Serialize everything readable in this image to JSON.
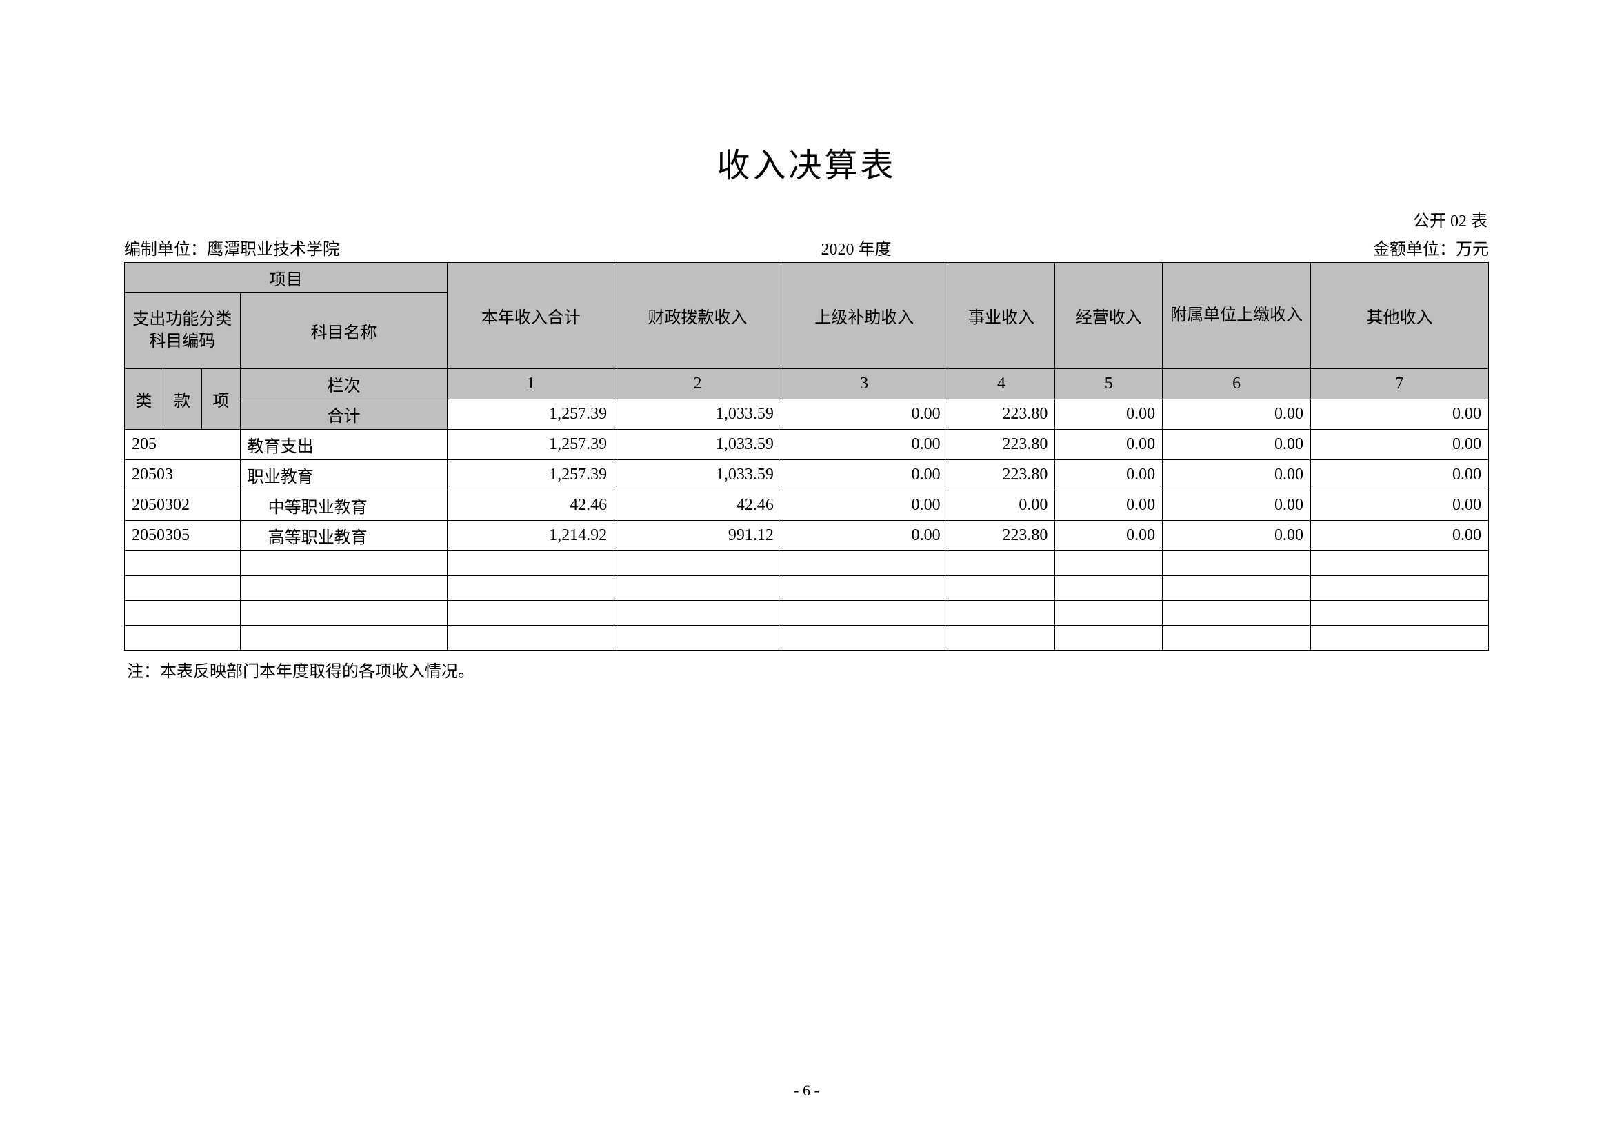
{
  "title": "收入决算表",
  "table_id": "公开 02 表",
  "meta": {
    "org_label": "编制单位：鹰潭职业技术学院",
    "year": "2020 年度",
    "unit": "金额单位：万元"
  },
  "header": {
    "project": "项目",
    "code_group": "支出功能分类科目编码",
    "subject_name": "科目名称",
    "col1": "本年收入合计",
    "col2": "财政拨款收入",
    "col3": "上级补助收入",
    "col4": "事业收入",
    "col5": "经营收入",
    "col6": "附属单位上缴收入",
    "col7": "其他收入",
    "lei": "类",
    "kuan": "款",
    "xiang": "项",
    "lanci": "栏次",
    "heji": "合计",
    "n1": "1",
    "n2": "2",
    "n3": "3",
    "n4": "4",
    "n5": "5",
    "n6": "6",
    "n7": "7"
  },
  "rows": [
    {
      "code": "",
      "name": "合计",
      "is_header_row": true,
      "v1": "1,257.39",
      "v2": "1,033.59",
      "v3": "0.00",
      "v4": "223.80",
      "v5": "0.00",
      "v6": "0.00",
      "v7": "0.00"
    },
    {
      "code": "205",
      "name": "教育支出",
      "indent": false,
      "v1": "1,257.39",
      "v2": "1,033.59",
      "v3": "0.00",
      "v4": "223.80",
      "v5": "0.00",
      "v6": "0.00",
      "v7": "0.00"
    },
    {
      "code": "20503",
      "name": "职业教育",
      "indent": false,
      "v1": "1,257.39",
      "v2": "1,033.59",
      "v3": "0.00",
      "v4": "223.80",
      "v5": "0.00",
      "v6": "0.00",
      "v7": "0.00"
    },
    {
      "code": "2050302",
      "name": "中等职业教育",
      "indent": true,
      "v1": "42.46",
      "v2": "42.46",
      "v3": "0.00",
      "v4": "0.00",
      "v5": "0.00",
      "v6": "0.00",
      "v7": "0.00"
    },
    {
      "code": "2050305",
      "name": "高等职业教育",
      "indent": true,
      "v1": "1,214.92",
      "v2": "991.12",
      "v3": "0.00",
      "v4": "223.80",
      "v5": "0.00",
      "v6": "0.00",
      "v7": "0.00"
    }
  ],
  "empty_rows": 4,
  "note": "注：本表反映部门本年度取得的各项收入情况。",
  "page_number": "- 6 -",
  "styling": {
    "header_bg": "#bfbfbf",
    "border_color": "#000000",
    "background": "#ffffff",
    "title_fontsize": 48,
    "body_fontsize": 24,
    "font_family": "SimSun"
  }
}
